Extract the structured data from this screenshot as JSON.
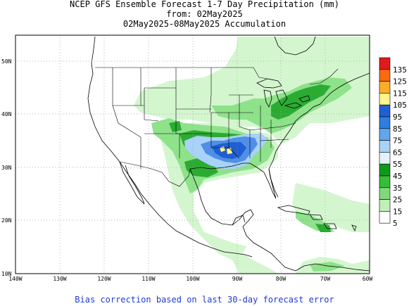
{
  "title": {
    "line1": "NCEP GFS Ensemble Forecast 1-7 Day Precipitation (mm)",
    "line2": "from: 02May2025",
    "line3": "02May2025-08May2025 Accumulation"
  },
  "footer": "Bias correction based on last 30-day forecast error",
  "map": {
    "lat_labels": [
      "50N",
      "40N",
      "30N",
      "20N",
      "10N"
    ],
    "lon_labels": [
      "140W",
      "130W",
      "120W",
      "110W",
      "100W",
      "90W",
      "80W",
      "70W",
      "60W"
    ],
    "lon_range": [
      -140,
      -60
    ],
    "lat_range": [
      10,
      55
    ],
    "grid": "dotted"
  },
  "legend": {
    "levels": [
      "135",
      "125",
      "115",
      "105",
      "95",
      "85",
      "75",
      "65",
      "55",
      "45",
      "35",
      "25",
      "15",
      "5"
    ],
    "colors": [
      "#e21a1a",
      "#fa6b0f",
      "#fbad29",
      "#fef48c",
      "#1f5fd1",
      "#2e7ddf",
      "#62a6ec",
      "#a8d2f7",
      "#e3f2fd",
      "#0f9a1f",
      "#35be38",
      "#7fd97c",
      "#bff0b8",
      "#ffffff"
    ]
  },
  "colors": {
    "map_background": "#ffffff",
    "footer_text": "#1d3bd8",
    "light_green": "#d4f6cf",
    "medium_green": "#8ee28a",
    "dark_green": "#2cab33",
    "light_blue": "#a8d2f7",
    "medium_blue": "#4f8fe6",
    "dark_blue": "#1f5fd1",
    "yellow": "#fef48c"
  }
}
